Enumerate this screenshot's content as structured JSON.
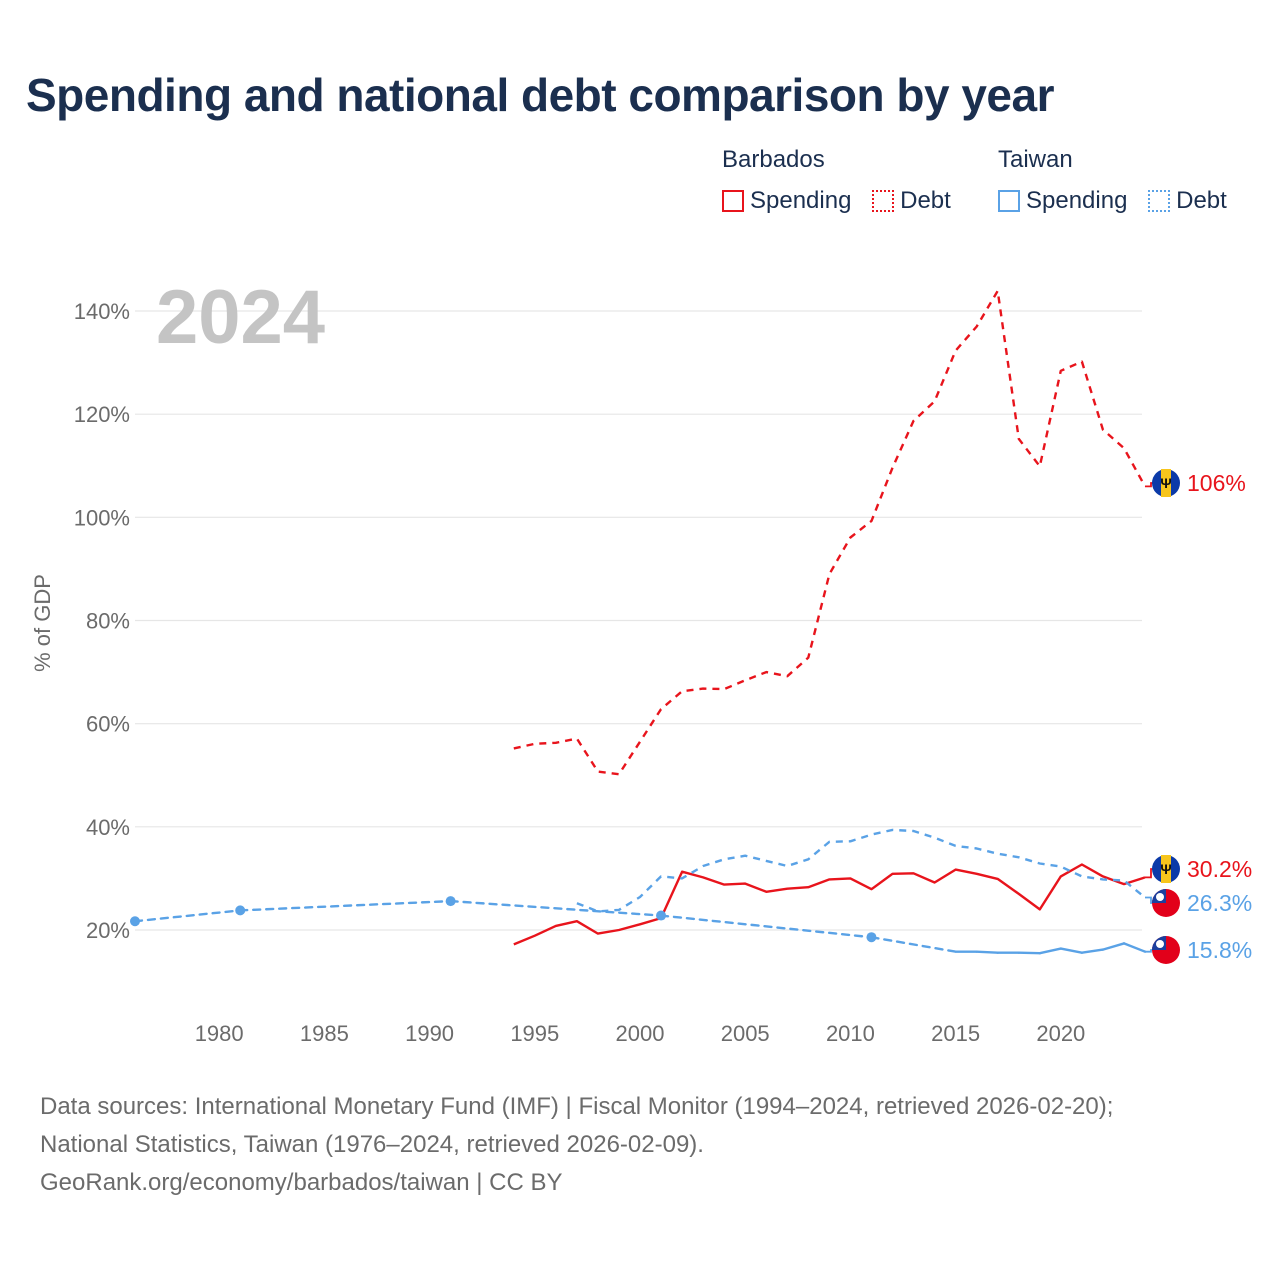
{
  "title": "Spending and national debt comparison by year",
  "legend": {
    "groups": [
      {
        "name": "Barbados",
        "color": "#e8141c",
        "items": [
          "Spending",
          "Debt"
        ]
      },
      {
        "name": "Taiwan",
        "color": "#5aa2e6",
        "items": [
          "Spending",
          "Debt"
        ]
      }
    ]
  },
  "chart_data": {
    "type": "line",
    "title": "Spending and national debt comparison by year",
    "year_label": "2024",
    "ylabel": "% of GDP",
    "xlim": [
      1976,
      2024
    ],
    "ylim": [
      10,
      148
    ],
    "x_ticks": [
      1980,
      1985,
      1990,
      1995,
      2000,
      2005,
      2010,
      2015,
      2020
    ],
    "y_ticks": [
      20,
      40,
      60,
      80,
      100,
      120,
      140
    ],
    "y_tick_labels": [
      "20%",
      "40%",
      "60%",
      "80%",
      "100%",
      "120%",
      "140%"
    ],
    "series": [
      {
        "name": "Barbados Debt",
        "country": "Barbados",
        "metric": "Debt",
        "color": "#e8141c",
        "style": "dashed",
        "x": [
          1994,
          1995,
          1996,
          1997,
          1998,
          1999,
          2000,
          2001,
          2002,
          2003,
          2004,
          2005,
          2006,
          2007,
          2008,
          2009,
          2010,
          2011,
          2012,
          2013,
          2014,
          2015,
          2016,
          2017,
          2018,
          2019,
          2020,
          2021,
          2022,
          2023,
          2024
        ],
        "y": [
          55.2,
          56.1,
          56.3,
          57.1,
          50.7,
          50.2,
          56.5,
          62.8,
          66.3,
          66.8,
          66.7,
          68.4,
          70.0,
          69.2,
          72.8,
          89.0,
          96.1,
          99.3,
          109.6,
          118.7,
          122.5,
          132.3,
          137.0,
          143.9,
          115.2,
          109.9,
          128.4,
          130.2,
          117.0,
          113.4,
          106.0
        ],
        "end_label": "106%"
      },
      {
        "name": "Barbados Spending",
        "country": "Barbados",
        "metric": "Spending",
        "color": "#e8141c",
        "style": "solid",
        "x": [
          1994,
          1995,
          1996,
          1997,
          1998,
          1999,
          2000,
          2001,
          2002,
          2003,
          2004,
          2005,
          2006,
          2007,
          2008,
          2009,
          2010,
          2011,
          2012,
          2013,
          2014,
          2015,
          2016,
          2017,
          2018,
          2019,
          2020,
          2021,
          2022,
          2023,
          2024
        ],
        "y": [
          17.2,
          18.9,
          20.8,
          21.7,
          19.3,
          20.0,
          21.1,
          22.3,
          31.3,
          30.2,
          28.8,
          29.0,
          27.4,
          28.0,
          28.3,
          29.8,
          30.0,
          27.9,
          30.9,
          31.0,
          29.2,
          31.7,
          30.9,
          29.9,
          27.0,
          24.0,
          30.4,
          32.7,
          30.4,
          28.9,
          30.2
        ],
        "end_label": "30.2%"
      },
      {
        "name": "Taiwan Debt",
        "country": "Taiwan",
        "metric": "Debt",
        "color": "#5aa2e6",
        "style": "dashed",
        "x": [
          1997,
          1998,
          1999,
          2000,
          2001,
          2002,
          2003,
          2004,
          2005,
          2006,
          2007,
          2008,
          2009,
          2010,
          2011,
          2012,
          2013,
          2014,
          2015,
          2016,
          2017,
          2018,
          2019,
          2020,
          2021,
          2022,
          2023,
          2024
        ],
        "y": [
          25.2,
          23.6,
          23.9,
          26.4,
          30.4,
          30.0,
          32.4,
          33.7,
          34.4,
          33.4,
          32.4,
          33.7,
          37.1,
          37.2,
          38.5,
          39.4,
          39.2,
          37.9,
          36.3,
          35.8,
          34.8,
          34.1,
          32.9,
          32.3,
          30.4,
          29.8,
          29.6,
          26.3
        ],
        "end_label": "26.3%"
      },
      {
        "name": "Taiwan Spending",
        "country": "Taiwan",
        "metric": "Spending",
        "color": "#5aa2e6",
        "style": "solid",
        "x": [
          1976,
          1981,
          1991,
          2001,
          2011,
          2015,
          2016,
          2017,
          2018,
          2019,
          2020,
          2021,
          2022,
          2023,
          2024
        ],
        "y": [
          21.7,
          23.8,
          25.6,
          22.8,
          18.6,
          15.8,
          15.8,
          15.6,
          15.6,
          15.5,
          16.4,
          15.6,
          16.2,
          17.4,
          15.8
        ],
        "segment_styles": [
          "dashed",
          "dashed",
          "dashed",
          "dashed",
          "dashed",
          "solid",
          "solid",
          "solid",
          "solid",
          "solid",
          "solid",
          "solid",
          "solid",
          "solid"
        ],
        "markers_at": [
          1976,
          1981,
          1991,
          2001,
          2011
        ],
        "end_label": "15.8%"
      }
    ]
  },
  "footer": {
    "line1": "Data sources: International Monetary Fund (IMF) | Fiscal Monitor (1994–2024, retrieved 2026-02-20);",
    "line2": "National Statistics, Taiwan (1976–2024, retrieved 2026-02-09).",
    "line3": "GeoRank.org/economy/barbados/taiwan | CC BY"
  }
}
